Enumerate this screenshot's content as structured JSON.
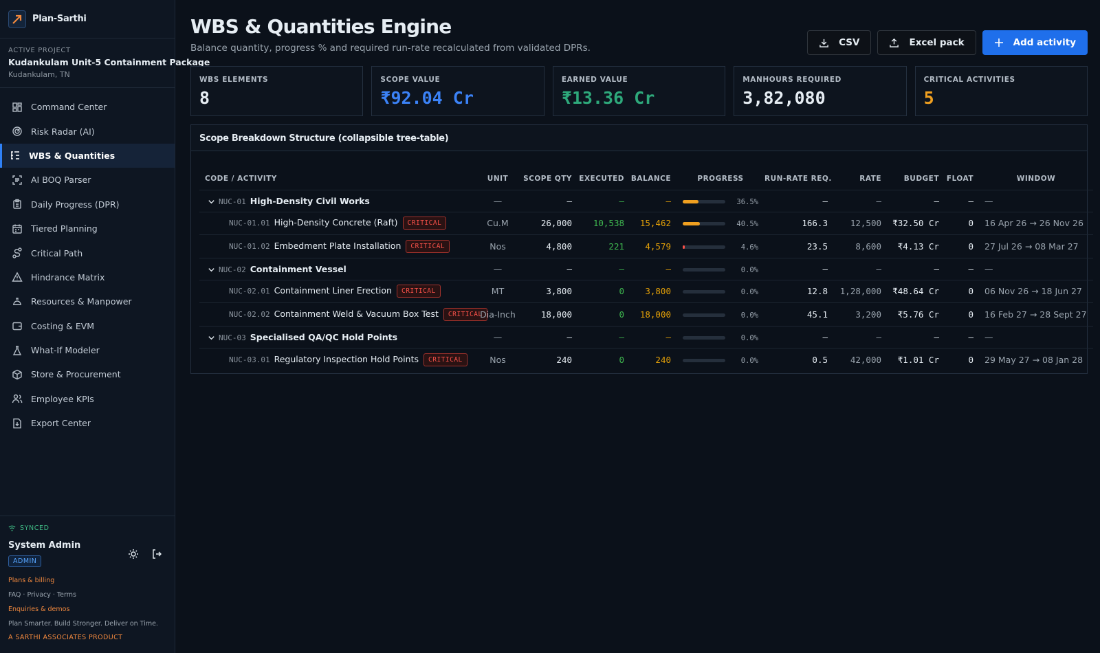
{
  "brand": {
    "name": "Plan-Sarthi"
  },
  "project": {
    "label": "ACTIVE PROJECT",
    "name": "Kudankulam Unit-5 Containment Package",
    "location": "Kudankulam, TN"
  },
  "nav": [
    {
      "label": "Command Center",
      "icon": "grid-icon"
    },
    {
      "label": "Risk Radar (AI)",
      "icon": "radar-icon"
    },
    {
      "label": "WBS & Quantities",
      "icon": "list-tree-icon",
      "active": true
    },
    {
      "label": "AI BOQ Parser",
      "icon": "scan-text-icon"
    },
    {
      "label": "Daily Progress (DPR)",
      "icon": "clipboard-icon"
    },
    {
      "label": "Tiered Planning",
      "icon": "calendar-icon"
    },
    {
      "label": "Critical Path",
      "icon": "route-icon"
    },
    {
      "label": "Hindrance Matrix",
      "icon": "warning-icon"
    },
    {
      "label": "Resources & Manpower",
      "icon": "hardhat-icon"
    },
    {
      "label": "Costing & EVM",
      "icon": "wallet-icon"
    },
    {
      "label": "What-If Modeler",
      "icon": "flask-icon"
    },
    {
      "label": "Store & Procurement",
      "icon": "package-icon"
    },
    {
      "label": "Employee KPIs",
      "icon": "users-icon"
    },
    {
      "label": "Export Center",
      "icon": "file-download-icon"
    }
  ],
  "footer": {
    "sync": "SYNCED",
    "user": "System Admin",
    "role": "ADMIN",
    "plans": "Plans & billing",
    "links": "FAQ · Privacy · Terms",
    "enquiries": "Enquiries & demos",
    "tagline": "Plan Smarter. Build Stronger. Deliver on Time.",
    "product": "A SARTHI ASSOCIATES PRODUCT"
  },
  "header": {
    "title": "WBS & Quantities Engine",
    "subtitle": "Balance quantity, progress % and required run-rate recalculated from validated DPRs.",
    "csv": "CSV",
    "excel": "Excel pack",
    "add": "Add activity"
  },
  "stats": [
    {
      "label": "WBS ELEMENTS",
      "value": "8",
      "color": "#e6edf3"
    },
    {
      "label": "SCOPE VALUE",
      "value": "₹92.04 Cr",
      "color": "#3b82f6"
    },
    {
      "label": "EARNED VALUE",
      "value": "₹13.36 Cr",
      "color": "#2ea97b"
    },
    {
      "label": "MANHOURS REQUIRED",
      "value": "3,82,080",
      "color": "#e6edf3"
    },
    {
      "label": "CRITICAL ACTIVITIES",
      "value": "5",
      "color": "#f0a020"
    }
  ],
  "table": {
    "title": "Scope Breakdown Structure (collapsible tree-table)",
    "columns": [
      "CODE / ACTIVITY",
      "UNIT",
      "SCOPE QTY",
      "EXECUTED",
      "BALANCE",
      "PROGRESS",
      "RUN-RATE REQ.",
      "RATE",
      "BUDGET",
      "FLOAT",
      "WINDOW"
    ],
    "critical_label": "CRITICAL",
    "rows": [
      {
        "group": true,
        "code": "NUC-01",
        "name": "High-Density Civil Works",
        "unit": "—",
        "scope": "—",
        "executed": "—",
        "balance": "—",
        "progress": 36.5,
        "progress_label": "36.5%",
        "runrate": "—",
        "rate": "—",
        "budget": "—",
        "float": "—",
        "window": "—"
      },
      {
        "group": false,
        "code": "NUC-01.01",
        "name": "High-Density Concrete (Raft)",
        "critical": true,
        "unit": "Cu.M",
        "scope": "26,000",
        "executed": "10,538",
        "balance": "15,462",
        "progress": 40.5,
        "progress_label": "40.5%",
        "runrate": "166.3",
        "rate": "12,500",
        "budget": "₹32.50 Cr",
        "float": "0",
        "window": "16 Apr 26 → 26 Nov 26"
      },
      {
        "group": false,
        "code": "NUC-01.02",
        "name": "Embedment Plate Installation",
        "critical": true,
        "unit": "Nos",
        "scope": "4,800",
        "executed": "221",
        "balance": "4,579",
        "progress": 4.6,
        "progress_label": "4.6%",
        "runrate": "23.5",
        "rate": "8,600",
        "budget": "₹4.13 Cr",
        "float": "0",
        "window": "27 Jul 26 → 08 Mar 27"
      },
      {
        "group": true,
        "code": "NUC-02",
        "name": "Containment Vessel",
        "unit": "—",
        "scope": "—",
        "executed": "—",
        "balance": "—",
        "progress": 0,
        "progress_label": "0.0%",
        "runrate": "—",
        "rate": "—",
        "budget": "—",
        "float": "—",
        "window": "—"
      },
      {
        "group": false,
        "code": "NUC-02.01",
        "name": "Containment Liner Erection",
        "critical": true,
        "unit": "MT",
        "scope": "3,800",
        "executed": "0",
        "balance": "3,800",
        "progress": 0,
        "progress_label": "0.0%",
        "runrate": "12.8",
        "rate": "1,28,000",
        "budget": "₹48.64 Cr",
        "float": "0",
        "window": "06 Nov 26 → 18 Jun 27"
      },
      {
        "group": false,
        "code": "NUC-02.02",
        "name": "Containment Weld & Vacuum Box Test",
        "critical": true,
        "unit": "Dia-Inch",
        "scope": "18,000",
        "executed": "0",
        "balance": "18,000",
        "progress": 0,
        "progress_label": "0.0%",
        "runrate": "45.1",
        "rate": "3,200",
        "budget": "₹5.76 Cr",
        "float": "0",
        "window": "16 Feb 27 → 28 Sept 27"
      },
      {
        "group": true,
        "code": "NUC-03",
        "name": "Specialised QA/QC Hold Points",
        "unit": "—",
        "scope": "—",
        "executed": "—",
        "balance": "—",
        "progress": 0,
        "progress_label": "0.0%",
        "runrate": "—",
        "rate": "—",
        "budget": "—",
        "float": "—",
        "window": "—"
      },
      {
        "group": false,
        "code": "NUC-03.01",
        "name": "Regulatory Inspection Hold Points",
        "critical": true,
        "unit": "Nos",
        "scope": "240",
        "executed": "0",
        "balance": "240",
        "progress": 0,
        "progress_label": "0.0%",
        "runrate": "0.5",
        "rate": "42,000",
        "budget": "₹1.01 Cr",
        "float": "0",
        "window": "29 May 27 → 08 Jan 28"
      }
    ]
  },
  "colors": {
    "accent": "#1f6feb",
    "progress_high": "#f0a020",
    "progress_low": "#f85149"
  }
}
